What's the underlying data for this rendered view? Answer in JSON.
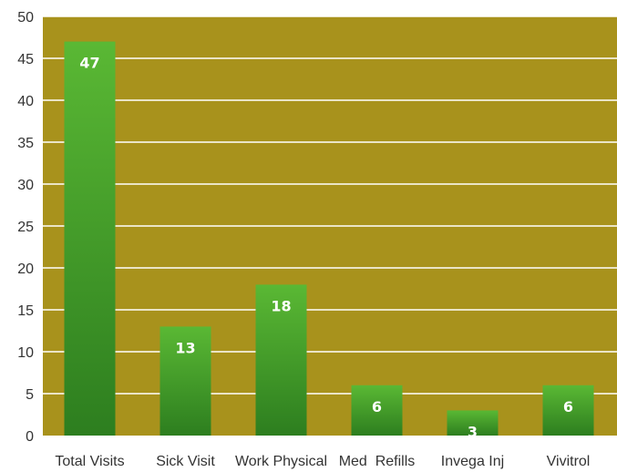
{
  "chart_data": {
    "type": "bar",
    "categories": [
      "Total Visits",
      "Sick Visit",
      "Work Physical",
      "Med  Refills",
      "Invega Inj",
      "Vivitrol"
    ],
    "values": [
      47,
      13,
      18,
      6,
      3,
      6
    ],
    "data_labels": [
      "47",
      "13",
      "18",
      "6",
      "3",
      "6"
    ],
    "yticks": [
      "0",
      "5",
      "10",
      "15",
      "20",
      "25",
      "30",
      "35",
      "40",
      "45",
      "50"
    ],
    "ylim": [
      0,
      50
    ],
    "grid": true,
    "legend": "none",
    "colors": {
      "plot_background": "#a8921c",
      "bar_top": "#5ab834",
      "bar_bottom": "#2d7e1f",
      "gridline": "#ffffff"
    }
  }
}
